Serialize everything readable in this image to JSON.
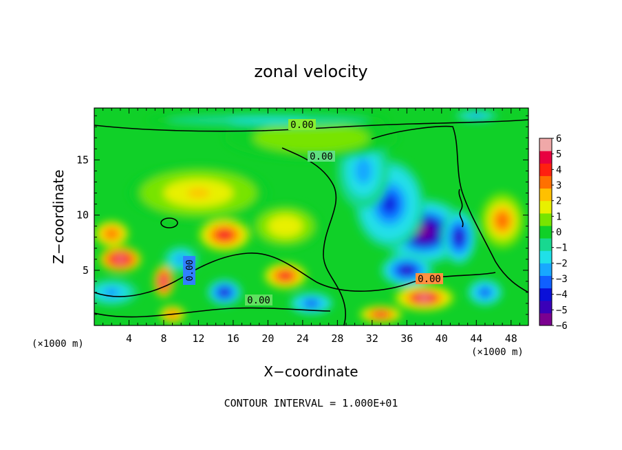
{
  "chart_data": {
    "type": "heatmap",
    "title": "zonal velocity",
    "xlabel": "X−coordinate",
    "ylabel": "Z−coordinate",
    "x_unit": "(×1000 m)",
    "x_ticks": [
      "4",
      "8",
      "12",
      "16",
      "20",
      "24",
      "28",
      "32",
      "36",
      "40",
      "44",
      "48"
    ],
    "x_tick_values": [
      4,
      8,
      12,
      16,
      20,
      24,
      28,
      32,
      36,
      40,
      44,
      48
    ],
    "y_ticks": [
      "5",
      "10",
      "15"
    ],
    "y_tick_values": [
      5,
      10,
      15
    ],
    "xlim": [
      0,
      50
    ],
    "ylim": [
      0,
      19.7
    ],
    "footer": "CONTOUR INTERVAL = 1.000E+01",
    "contour_label": "0.00",
    "colorbar": {
      "min": -6,
      "max": 6,
      "ticks": [
        "6",
        "5",
        "4",
        "3",
        "2",
        "1",
        "0",
        "−1",
        "−2",
        "−3",
        "−4",
        "−5",
        "−6"
      ],
      "tick_values": [
        6,
        5,
        4,
        3,
        2,
        1,
        0,
        -1,
        -2,
        -3,
        -4,
        -5,
        -6
      ],
      "colors": [
        "#7b0090",
        "#3a00b8",
        "#0a10d8",
        "#1060ff",
        "#18a8ff",
        "#20e0e8",
        "#18d890",
        "#10d028",
        "#78e400",
        "#e8f000",
        "#ffc000",
        "#ff7000",
        "#ff2010",
        "#e80040",
        "#f0a8a8"
      ]
    },
    "blobs": [
      {
        "x": 38,
        "y": 8.5,
        "v": -5.5,
        "sx": 5,
        "sy": 3
      },
      {
        "x": 34,
        "y": 11,
        "v": -3.8,
        "sx": 4,
        "sy": 4
      },
      {
        "x": 31,
        "y": 14,
        "v": -2.5,
        "sx": 3,
        "sy": 3.5
      },
      {
        "x": 36,
        "y": 5,
        "v": -4.5,
        "sx": 3,
        "sy": 1.5
      },
      {
        "x": 15,
        "y": 3,
        "v": -4.5,
        "sx": 2,
        "sy": 1.2
      },
      {
        "x": 42,
        "y": 8,
        "v": -5,
        "sx": 2,
        "sy": 2.5
      },
      {
        "x": 45,
        "y": 3,
        "v": -4,
        "sx": 2,
        "sy": 1.2
      },
      {
        "x": 25,
        "y": 2,
        "v": -4,
        "sx": 2.5,
        "sy": 1
      },
      {
        "x": 2,
        "y": 3,
        "v": -3,
        "sx": 3,
        "sy": 1.2
      },
      {
        "x": 10,
        "y": 6,
        "v": -3,
        "sx": 2,
        "sy": 1.2
      },
      {
        "x": 3,
        "y": 6,
        "v": 6,
        "sx": 2.5,
        "sy": 1.2
      },
      {
        "x": 2,
        "y": 8.3,
        "v": 4,
        "sx": 2,
        "sy": 1.2
      },
      {
        "x": 15,
        "y": 8.2,
        "v": 4.5,
        "sx": 3,
        "sy": 1.5
      },
      {
        "x": 22,
        "y": 4.5,
        "v": 5,
        "sx": 2.5,
        "sy": 1.2
      },
      {
        "x": 38,
        "y": 2.5,
        "v": 5.5,
        "sx": 3.5,
        "sy": 1.2
      },
      {
        "x": 47,
        "y": 9.5,
        "v": 3.5,
        "sx": 2.5,
        "sy": 2.5
      },
      {
        "x": 8,
        "y": 4,
        "v": 6,
        "sx": 1.2,
        "sy": 1.5
      },
      {
        "x": 9,
        "y": 1,
        "v": 4,
        "sx": 1.5,
        "sy": 0.8
      },
      {
        "x": 33,
        "y": 1,
        "v": 5,
        "sx": 2.5,
        "sy": 0.8
      },
      {
        "x": 12,
        "y": 12,
        "v": 2,
        "sx": 8,
        "sy": 2.5
      },
      {
        "x": 22,
        "y": 9,
        "v": 1.8,
        "sx": 4,
        "sy": 2
      },
      {
        "x": 25,
        "y": 17,
        "v": 0.8,
        "sx": 10,
        "sy": 2
      },
      {
        "x": 20,
        "y": 18.6,
        "v": -1.5,
        "sx": 14,
        "sy": 0.6
      },
      {
        "x": 44,
        "y": 19,
        "v": -3,
        "sx": 2.5,
        "sy": 0.5
      }
    ]
  }
}
